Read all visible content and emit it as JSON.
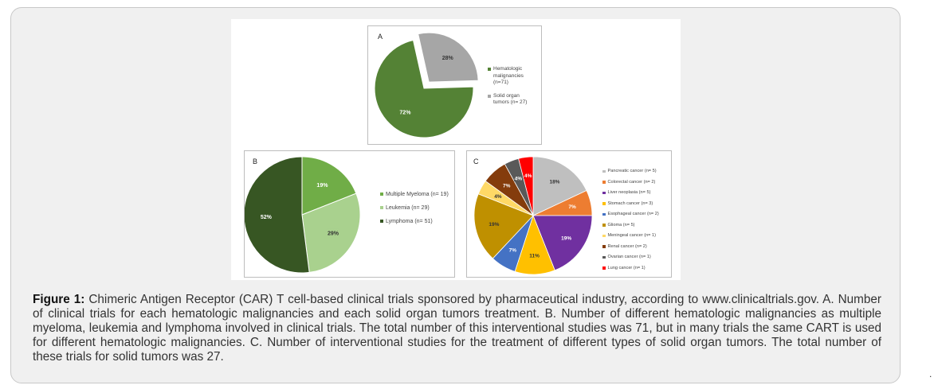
{
  "chart_data": [
    {
      "type": "pie",
      "panel": "A",
      "categories": [
        "Hematologic malignancies (n=71)",
        "Solid organ tumors (n= 27)"
      ],
      "values": [
        72,
        28
      ],
      "labels": [
        "72%",
        "28%"
      ],
      "colors": [
        "#548235",
        "#a6a6a6"
      ],
      "legend_position": "right"
    },
    {
      "type": "pie",
      "panel": "B",
      "categories": [
        "Multiple Myeloma (n= 19)",
        "Leukemia (n= 29)",
        "Lymphoma (n= 51)"
      ],
      "values": [
        19,
        29,
        52
      ],
      "labels": [
        "19%",
        "29%",
        "52%"
      ],
      "colors": [
        "#70ad47",
        "#a9d18e",
        "#375623"
      ],
      "legend_position": "right"
    },
    {
      "type": "pie",
      "panel": "C",
      "categories": [
        "Pancreatic cancer (n= 5)",
        "Colorectal cancer (n= 2)",
        "Liver neoplasia (n= 5)",
        "Stomach cancer (n= 3)",
        "Esophageal cancer (n= 2)",
        "Glioma (n= 5)",
        "Meningeal cancer (n= 1)",
        "Renal cancer (n= 2)",
        "Ovarian cancer (n= 1)",
        "Lung cancer (n= 1)"
      ],
      "values": [
        18,
        7,
        19,
        11,
        7,
        19,
        4,
        7,
        4,
        4
      ],
      "labels": [
        "18%",
        "7%",
        "19%",
        "11%",
        "7%",
        "19%",
        "4%",
        "7%",
        "4%",
        "4%"
      ],
      "colors": [
        "#bfbfbf",
        "#ed7d31",
        "#7030a0",
        "#ffc000",
        "#4472c4",
        "#bf9000",
        "#ffd966",
        "#843c0c",
        "#595959",
        "#ff0000"
      ],
      "legend_position": "right"
    }
  ],
  "figure": {
    "caption_label": "Figure 1:",
    "caption_text": " Chimeric Antigen Receptor (CAR) T cell-based clinical trials sponsored by pharmaceutical industry, according to www.clinicaltrials.gov. A. Number of clinical trials for each hematologic malignancies and each solid organ tumors treatment. B. Number of different hematologic malignancies as multiple myeloma, leukemia and lymphoma involved in clinical trials. The total number of this interventional studies was 71, but in many trials the same CART is used for different hematologic malignancies. C. Number of interventional studies for the treatment of different types of solid organ tumors. The total number of these trials for solid tumors was 27.",
    "corner_mark": "."
  }
}
